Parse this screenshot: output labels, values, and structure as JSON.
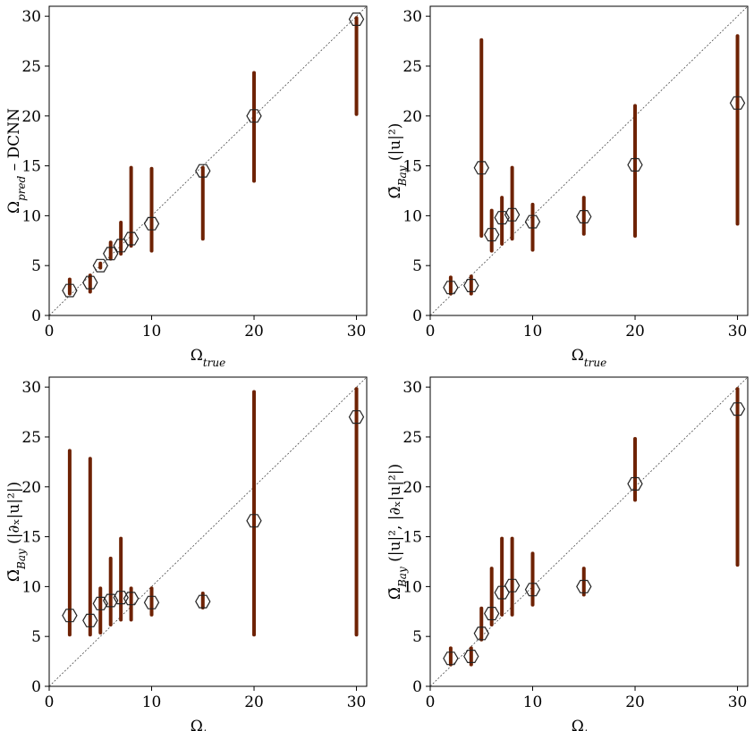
{
  "chart_data": [
    {
      "type": "scatter",
      "xlabel": {
        "main": "Ω",
        "sub": "true"
      },
      "ylabel": {
        "main": "Ω",
        "sub": "pred",
        "rest": " – DCNN"
      },
      "xlim": [
        0,
        31
      ],
      "ylim": [
        0,
        31
      ],
      "xticks": [
        0,
        10,
        20,
        30
      ],
      "yticks": [
        0,
        5,
        10,
        15,
        20,
        25,
        30
      ],
      "x": [
        2,
        4,
        5,
        6,
        7,
        8,
        10,
        15,
        20,
        30
      ],
      "low": [
        2.0,
        2.2,
        4.6,
        5.5,
        6.0,
        6.8,
        6.3,
        7.5,
        13.3,
        20.0
      ],
      "high": [
        3.8,
        4.2,
        5.4,
        7.5,
        9.5,
        15.0,
        14.9,
        15.0,
        24.5,
        30.0
      ],
      "mean": [
        2.5,
        3.3,
        5.0,
        6.2,
        7.0,
        7.7,
        9.2,
        14.5,
        20.0,
        29.7
      ],
      "color": "#6e2204",
      "mean_color": "#222222",
      "diagonal": true
    },
    {
      "type": "scatter",
      "xlabel": {
        "main": "Ω",
        "sub": "true"
      },
      "ylabel": {
        "main": "Ω̄",
        "sub": "Bay",
        "rest": " (|u|²)"
      },
      "xlim": [
        0,
        31
      ],
      "ylim": [
        0,
        31
      ],
      "xticks": [
        0,
        10,
        20,
        30
      ],
      "yticks": [
        0,
        5,
        10,
        15,
        20,
        25,
        30
      ],
      "x": [
        2,
        4,
        5,
        6,
        7,
        8,
        10,
        15,
        20,
        30
      ],
      "low": [
        2.0,
        2.0,
        7.8,
        6.3,
        7.0,
        7.5,
        6.4,
        8.0,
        7.8,
        9.0
      ],
      "high": [
        4.0,
        4.1,
        27.8,
        10.7,
        12.0,
        15.0,
        11.3,
        12.0,
        21.2,
        28.2
      ],
      "mean": [
        2.8,
        3.0,
        14.8,
        8.1,
        9.8,
        10.1,
        9.4,
        9.9,
        15.1,
        21.3
      ],
      "color": "#6e2204",
      "mean_color": "#222222",
      "diagonal": true
    },
    {
      "type": "scatter",
      "xlabel": {
        "main": "Ω",
        "sub": "true"
      },
      "ylabel": {
        "main": "Ω̄",
        "sub": "Bay",
        "rest": " (|∂ₓ|u|²|)"
      },
      "xlim": [
        0,
        31
      ],
      "ylim": [
        0,
        31
      ],
      "xticks": [
        0,
        10,
        20,
        30
      ],
      "yticks": [
        0,
        5,
        10,
        15,
        20,
        25,
        30
      ],
      "x": [
        2,
        4,
        5,
        6,
        7,
        8,
        10,
        15,
        20,
        30
      ],
      "low": [
        5.0,
        5.0,
        5.2,
        6.0,
        6.5,
        6.5,
        7.0,
        7.7,
        5.0,
        5.0
      ],
      "high": [
        23.8,
        23.0,
        10.0,
        13.0,
        15.0,
        10.0,
        10.0,
        9.5,
        29.7,
        30.0
      ],
      "mean": [
        7.1,
        6.6,
        8.3,
        8.6,
        8.9,
        8.8,
        8.4,
        8.5,
        16.6,
        27.0
      ],
      "color": "#6e2204",
      "mean_color": "#222222",
      "diagonal": true
    },
    {
      "type": "scatter",
      "xlabel": {
        "main": "Ω",
        "sub": "true"
      },
      "ylabel": {
        "main": "Ω̄",
        "sub": "Bay",
        "rest": " (|u|², |∂ₓ|u|²|)"
      },
      "xlim": [
        0,
        31
      ],
      "ylim": [
        0,
        31
      ],
      "xticks": [
        0,
        10,
        20,
        30
      ],
      "yticks": [
        0,
        5,
        10,
        15,
        20,
        25,
        30
      ],
      "x": [
        2,
        4,
        5,
        6,
        7,
        8,
        10,
        15,
        20,
        30
      ],
      "low": [
        2.0,
        2.0,
        4.5,
        6.0,
        7.0,
        7.0,
        8.0,
        9.0,
        18.5,
        12.0
      ],
      "high": [
        4.0,
        4.0,
        8.0,
        12.0,
        15.0,
        15.0,
        13.5,
        12.0,
        25.0,
        30.0
      ],
      "mean": [
        2.8,
        3.0,
        5.3,
        7.3,
        9.4,
        10.1,
        9.7,
        10.0,
        20.3,
        27.8
      ],
      "color": "#6e2204",
      "mean_color": "#222222",
      "diagonal": true
    }
  ]
}
